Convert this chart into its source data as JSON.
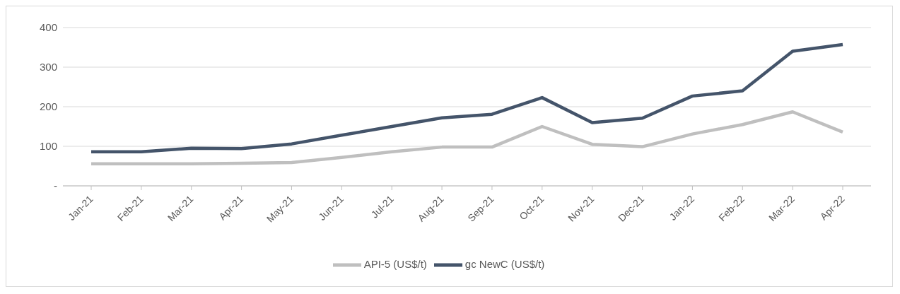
{
  "chart_data": {
    "type": "line",
    "categories": [
      "Jan-21",
      "Feb-21",
      "Mar-21",
      "Apr-21",
      "May-21",
      "Jun-21",
      "Jul-21",
      "Aug-21",
      "Sep-21",
      "Oct-21",
      "Nov-21",
      "Dec-21",
      "Jan-22",
      "Feb-22",
      "Mar-22",
      "Apr-22"
    ],
    "series": [
      {
        "name": "gc NewC (US$/t)",
        "color": "#44546a",
        "values": [
          86,
          86,
          95,
          94,
          106,
          128,
          150,
          172,
          181,
          223,
          160,
          171,
          227,
          240,
          340,
          357
        ]
      },
      {
        "name": "API-5 (US$/t)",
        "color": "#bfbfbf",
        "values": [
          56,
          56,
          56,
          57,
          59,
          72,
          86,
          98,
          98,
          150,
          105,
          99,
          131,
          155,
          187,
          136
        ]
      }
    ],
    "ylim": [
      0,
      400
    ],
    "yticks": [
      {
        "value": 0,
        "label": "-"
      },
      100,
      200,
      300,
      400
    ],
    "grid": "y",
    "legend": "bottom",
    "marker": "none",
    "line_style": "solid"
  }
}
